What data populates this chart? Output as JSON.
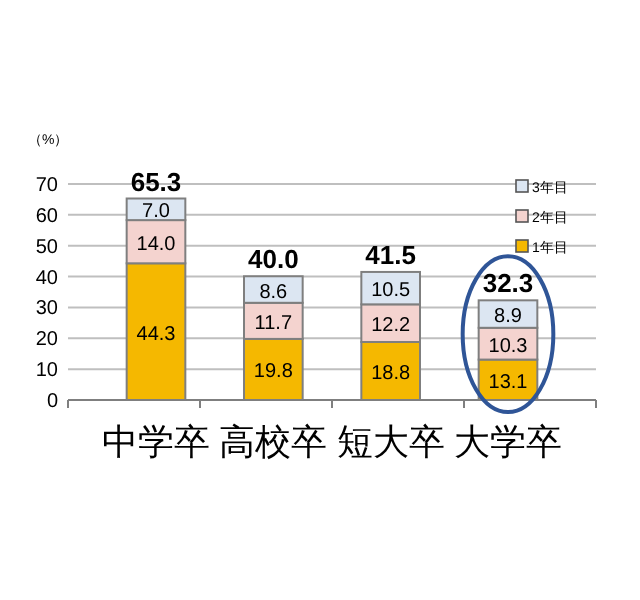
{
  "chart_data": {
    "type": "bar",
    "stacked": true,
    "ylabel": "（%）",
    "categories": [
      "中学卒",
      "高校卒",
      "短大卒",
      "大学卒"
    ],
    "series": [
      {
        "name": "1年目",
        "color": "#f5b800",
        "values": [
          44.3,
          19.8,
          18.8,
          13.1
        ],
        "value_labels": [
          "44.3",
          "19.8",
          "18.8",
          "13.1"
        ]
      },
      {
        "name": "2年目",
        "color": "#f4d3cf",
        "values": [
          14.0,
          11.7,
          12.2,
          10.3
        ],
        "value_labels": [
          "14.0",
          "11.7",
          "12.2",
          "10.3"
        ]
      },
      {
        "name": "3年目",
        "color": "#dce6f2",
        "values": [
          7.0,
          8.6,
          10.5,
          8.9
        ],
        "value_labels": [
          "7.0",
          "8.6",
          "10.5",
          "8.9"
        ]
      }
    ],
    "totals": [
      "65.3",
      "40.0",
      "41.5",
      "32.3"
    ],
    "ylim": [
      0,
      70
    ],
    "yticks": [
      0,
      10,
      20,
      30,
      40,
      50,
      60,
      70
    ],
    "grid": "y",
    "legend": "top right"
  }
}
